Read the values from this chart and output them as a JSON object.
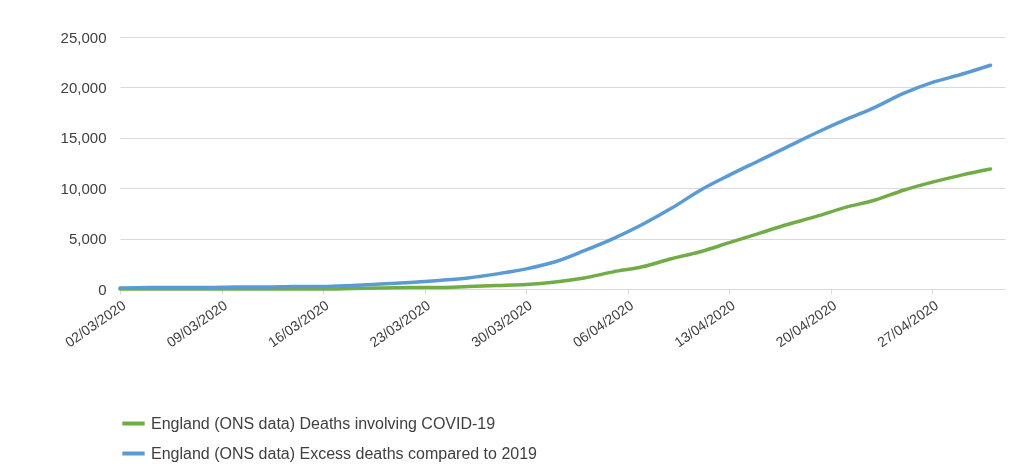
{
  "chart_data": {
    "type": "line",
    "x": [
      "2020-03-02",
      "2020-03-04",
      "2020-03-06",
      "2020-03-08",
      "2020-03-10",
      "2020-03-12",
      "2020-03-14",
      "2020-03-16",
      "2020-03-18",
      "2020-03-20",
      "2020-03-22",
      "2020-03-24",
      "2020-03-26",
      "2020-03-28",
      "2020-03-30",
      "2020-04-01",
      "2020-04-03",
      "2020-04-05",
      "2020-04-07",
      "2020-04-09",
      "2020-04-11",
      "2020-04-13",
      "2020-04-15",
      "2020-04-17",
      "2020-04-19",
      "2020-04-21",
      "2020-04-23",
      "2020-04-25",
      "2020-04-27",
      "2020-04-29",
      "2020-05-01"
    ],
    "series": [
      {
        "name": "England (ONS data) Deaths involving COVID-19",
        "color": "#70ad47",
        "values": [
          0,
          0,
          0,
          0,
          0,
          0,
          0,
          0,
          50,
          100,
          150,
          150,
          250,
          350,
          450,
          700,
          1100,
          1700,
          2200,
          3000,
          3700,
          4600,
          5500,
          6400,
          7200,
          8100,
          8800,
          9800,
          10600,
          11300,
          11900
        ]
      },
      {
        "name": "England (ONS data) Excess deaths compared to 2019",
        "color": "#5b9bd5",
        "values": [
          100,
          150,
          150,
          150,
          200,
          200,
          250,
          250,
          350,
          500,
          650,
          850,
          1100,
          1500,
          2000,
          2700,
          3800,
          5000,
          6400,
          8000,
          9800,
          11300,
          12700,
          14100,
          15500,
          16800,
          18000,
          19400,
          20500,
          21300,
          22200
        ]
      }
    ],
    "xlim": [
      "2020-03-02",
      "2020-05-02"
    ],
    "xticks": [
      {
        "value": "2020-03-02",
        "label": "02/03/2020"
      },
      {
        "value": "2020-03-09",
        "label": "09/03/2020"
      },
      {
        "value": "2020-03-16",
        "label": "16/03/2020"
      },
      {
        "value": "2020-03-23",
        "label": "23/03/2020"
      },
      {
        "value": "2020-03-30",
        "label": "30/03/2020"
      },
      {
        "value": "2020-04-06",
        "label": "06/04/2020"
      },
      {
        "value": "2020-04-13",
        "label": "13/04/2020"
      },
      {
        "value": "2020-04-20",
        "label": "20/04/2020"
      },
      {
        "value": "2020-04-27",
        "label": "27/04/2020"
      }
    ],
    "ylim": [
      0,
      25000
    ],
    "yticks": [
      {
        "value": 0,
        "label": "0"
      },
      {
        "value": 5000,
        "label": "5,000"
      },
      {
        "value": 10000,
        "label": "10,000"
      },
      {
        "value": 15000,
        "label": "15,000"
      },
      {
        "value": 20000,
        "label": "20,000"
      },
      {
        "value": 25000,
        "label": "25,000"
      }
    ],
    "grid": "y",
    "legend": "bottom",
    "line_style": "solid",
    "marker": "none"
  }
}
